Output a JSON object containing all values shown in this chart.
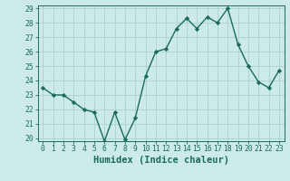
{
  "x": [
    0,
    1,
    2,
    3,
    4,
    5,
    6,
    7,
    8,
    9,
    10,
    11,
    12,
    13,
    14,
    15,
    16,
    17,
    18,
    19,
    20,
    21,
    22,
    23
  ],
  "y": [
    23.5,
    23.0,
    23.0,
    22.5,
    22.0,
    21.8,
    19.8,
    21.8,
    19.9,
    21.4,
    24.3,
    26.0,
    26.2,
    27.6,
    28.3,
    27.6,
    28.4,
    28.0,
    29.0,
    26.5,
    25.0,
    23.9,
    23.5,
    24.7
  ],
  "line_color": "#1a6b5a",
  "bg_color": "#cdeaea",
  "grid_color": "#b0d4d4",
  "xlabel": "Humidex (Indice chaleur)",
  "ylim": [
    20,
    29
  ],
  "xlim": [
    -0.5,
    23.5
  ],
  "yticks": [
    20,
    21,
    22,
    23,
    24,
    25,
    26,
    27,
    28,
    29
  ],
  "xticks": [
    0,
    1,
    2,
    3,
    4,
    5,
    6,
    7,
    8,
    9,
    10,
    11,
    12,
    13,
    14,
    15,
    16,
    17,
    18,
    19,
    20,
    21,
    22,
    23
  ],
  "xtick_labels": [
    "0",
    "1",
    "2",
    "3",
    "4",
    "5",
    "6",
    "7",
    "8",
    "9",
    "10",
    "11",
    "12",
    "13",
    "14",
    "15",
    "16",
    "17",
    "18",
    "19",
    "20",
    "21",
    "22",
    "23"
  ],
  "marker": "D",
  "marker_size": 2.2,
  "line_width": 1.0,
  "tick_color": "#1a6b5a",
  "label_color": "#1a6b5a",
  "xlabel_fontsize": 7.5,
  "tick_fontsize": 5.8
}
